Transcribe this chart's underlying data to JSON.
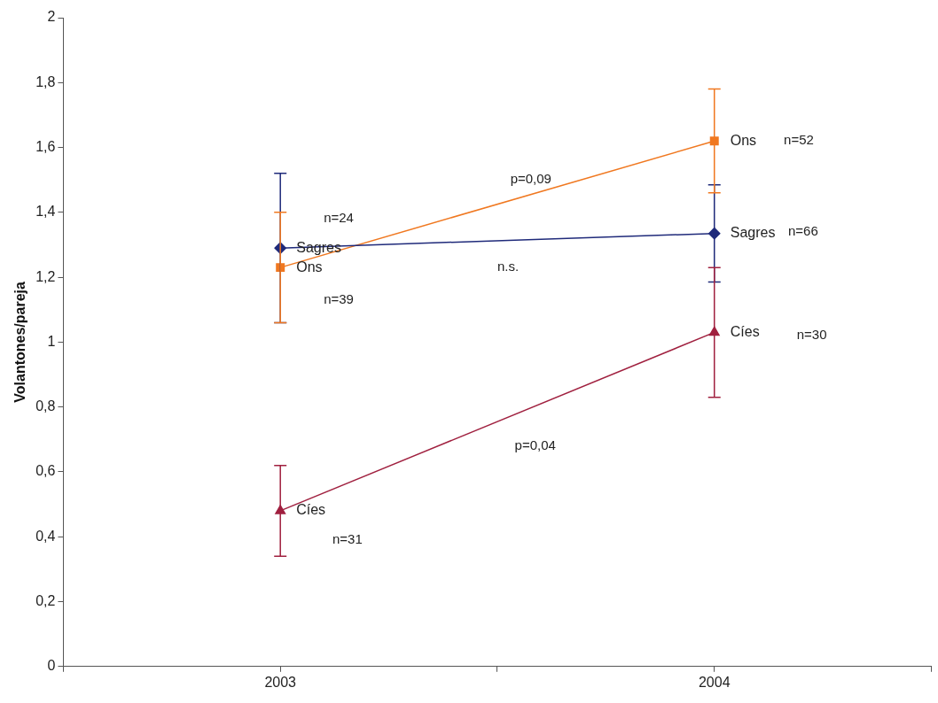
{
  "chart_data": {
    "type": "line",
    "ylabel": "Volantones/pareja",
    "x": [
      2003,
      2004
    ],
    "xlim": [
      2002.5,
      2004.5
    ],
    "xticks": [
      {
        "value": 2002.5,
        "label": null
      },
      2003,
      {
        "value": 2003.5,
        "label": null
      },
      2004,
      {
        "value": 2004.5,
        "label": null
      }
    ],
    "ylim": [
      0,
      2
    ],
    "yticks": [
      0,
      {
        "value": 0.2,
        "label": "0,2"
      },
      {
        "value": 0.4,
        "label": "0,4"
      },
      {
        "value": 0.6,
        "label": "0,6"
      },
      {
        "value": 0.8,
        "label": "0,8"
      },
      1,
      {
        "value": 1.2,
        "label": "1,2"
      },
      {
        "value": 1.4,
        "label": "1,4"
      },
      {
        "value": 1.6,
        "label": "1,6"
      },
      {
        "value": 1.8,
        "label": "1,8"
      },
      2
    ],
    "grid": false,
    "legend": false,
    "line_style": "solid",
    "series": [
      {
        "name": "Sagres",
        "color": "#1f2a7a",
        "marker": "diamond",
        "values": [
          1.29,
          1.335
        ],
        "errors": [
          0.23,
          0.15
        ]
      },
      {
        "name": "Ons",
        "color": "#f07820",
        "marker": "square",
        "values": [
          1.23,
          1.62
        ],
        "errors": [
          0.17,
          0.16
        ]
      },
      {
        "name": "Cíes",
        "color": "#a0203f",
        "marker": "triangle",
        "values": [
          0.48,
          1.03
        ],
        "errors": [
          0.14,
          0.2
        ]
      }
    ],
    "annotations": [
      "n=24",
      "n=39",
      "n=31",
      "n=52",
      "n=66",
      "n=30",
      "p=0,09",
      "n.s.",
      "p=0,04"
    ]
  }
}
